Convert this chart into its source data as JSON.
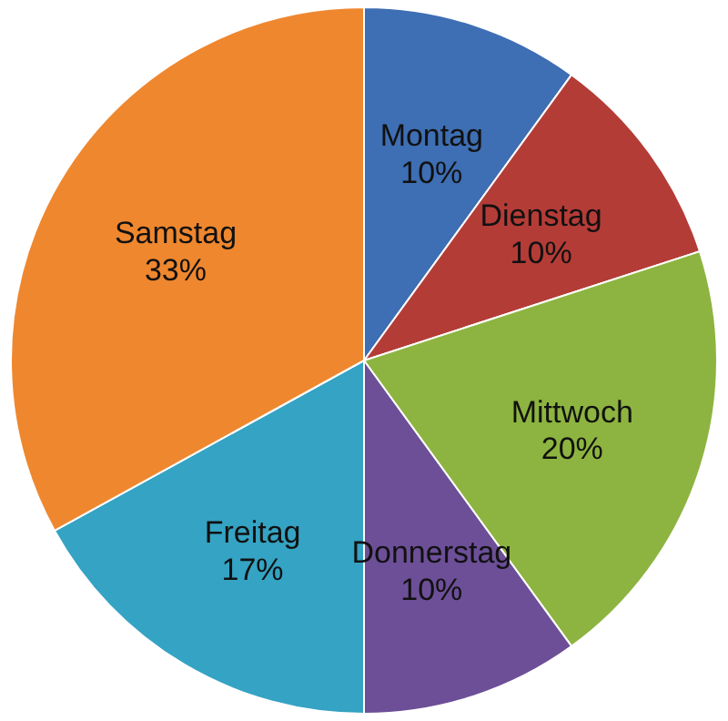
{
  "chart_data": {
    "type": "pie",
    "categories": [
      "Montag",
      "Dienstag",
      "Mittwoch",
      "Donnerstag",
      "Freitag",
      "Samstag"
    ],
    "values": [
      10,
      10,
      20,
      10,
      17,
      33
    ],
    "value_labels": [
      "10%",
      "10%",
      "20%",
      "10%",
      "17%",
      "33%"
    ],
    "colors": [
      "#3e6eb3",
      "#b43c37",
      "#8db440",
      "#6d4f98",
      "#35a3c3",
      "#ef872f"
    ]
  }
}
